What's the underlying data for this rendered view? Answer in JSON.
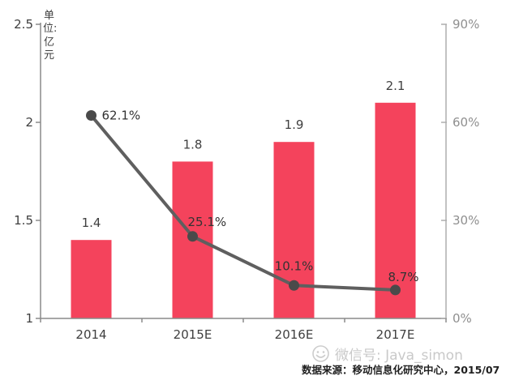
{
  "chart_data": {
    "type": "bar",
    "subtype": "bar-line-combo",
    "categories": [
      "2014",
      "2015E",
      "2016E",
      "2017E"
    ],
    "series": [
      {
        "type": "bar",
        "axis": "left",
        "values": [
          1.4,
          1.8,
          1.9,
          2.1
        ],
        "labels": [
          "1.4",
          "1.8",
          "1.9",
          "2.1"
        ],
        "color": "#F4435C"
      },
      {
        "type": "line",
        "axis": "right",
        "values": [
          62.1,
          25.1,
          10.1,
          8.7
        ],
        "labels": [
          "62.1%",
          "25.1%",
          "10.1%",
          "8.7%"
        ],
        "color": "#5F5F5F",
        "marker_color": "#4A4A4A"
      }
    ],
    "title": "",
    "xlabel": "",
    "left_axis": {
      "title": "单位:亿元",
      "min": 1,
      "max": 2.5,
      "tick_values": [
        1,
        1.5,
        2,
        2.5
      ],
      "tick_labels": [
        "1",
        "1.5",
        "2",
        "2.5"
      ]
    },
    "right_axis": {
      "min": 0,
      "max": 90,
      "tick_values": [
        0,
        30,
        60,
        90
      ],
      "tick_labels": [
        "0%",
        "30%",
        "60%",
        "90%"
      ]
    },
    "grid": false,
    "legend": "none",
    "colors": {
      "axis_line": "#8A8A8A",
      "right_axis_line": "#ADADAD",
      "left_tick_label": "#3F3F3F",
      "right_tick_label": "#8F8F8F",
      "x_tick_label": "#3F3F3F",
      "bar_label": "#3F3F3F",
      "point_label": "#333333"
    }
  },
  "footer": {
    "watermark": "微信号: Java_simon",
    "source": "数据来源：移动信息化研究中心，2015/07"
  }
}
